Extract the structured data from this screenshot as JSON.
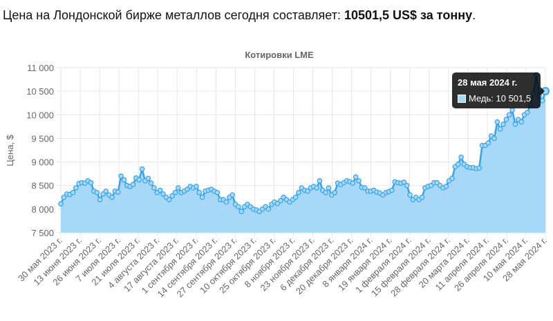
{
  "headline": {
    "prefix": "Цена на Лондонской бирже металлов сегодня составляет: ",
    "price": "10501,5 US$ за тонну",
    "suffix": "."
  },
  "tooltip": {
    "date": "28 мая 2024 г.",
    "label": "Медь: 10 501,5"
  },
  "colors": {
    "line": "#36a2eb",
    "fill": "#a7d8f8",
    "grid": "#e6e6e6"
  },
  "chart_data": {
    "type": "area",
    "title": "Котировки LME",
    "ylabel": "Цена, $",
    "xlabel": "",
    "ylim": [
      7500,
      11000
    ],
    "yticks": [
      7500,
      8000,
      8500,
      9000,
      9500,
      10000,
      10500,
      11000
    ],
    "ytick_labels": [
      "7 500",
      "8 000",
      "8 500",
      "9 000",
      "9 500",
      "10 000",
      "10 500",
      "11 000"
    ],
    "x_tick_labels": [
      "30 мая 2023 г.",
      "13 июня 2023 г.",
      "26 июня 2023 г.",
      "7 июля 2023 г.",
      "21 июля 2023 г.",
      "4 августа 2023 г.",
      "17 августа 2023 г.",
      "1 сентября 2023 г.",
      "14 сентября 2023 г.",
      "27 сентября 2023 г.",
      "10 октября 2023 г.",
      "25 октября 2023 г.",
      "8 ноября 2023 г.",
      "23 ноября 2023 г.",
      "6 декабря 2023 г.",
      "20 декабря 2023 г.",
      "8 января 2024 г.",
      "19 января 2024 г.",
      "1 февраля 2024 г.",
      "15 февраля 2024 г.",
      "28 февраля 2024 г.",
      "20 марта 2024 г.",
      "11 апреля 2024 г.",
      "26 апреля 2024 г.",
      "10 мая 2024 г.",
      "28 мая 2024 г."
    ],
    "grid": true,
    "legend": "none",
    "series": [
      {
        "values": [
          8110,
          8250,
          8320,
          8310,
          8350,
          8450,
          8540,
          8560,
          8550,
          8600,
          8560,
          8380,
          8350,
          8200,
          8320,
          8380,
          8300,
          8250,
          8380,
          8360,
          8700,
          8620,
          8500,
          8480,
          8520,
          8660,
          8620,
          8850,
          8600,
          8650,
          8550,
          8450,
          8350,
          8400,
          8320,
          8250,
          8200,
          8280,
          8350,
          8450,
          8350,
          8380,
          8420,
          8480,
          8450,
          8480,
          8350,
          8250,
          8380,
          8400,
          8420,
          8380,
          8350,
          8200,
          8200,
          8150,
          8250,
          8300,
          8100,
          8050,
          7950,
          8050,
          8100,
          8050,
          8000,
          7980,
          7950,
          8000,
          8050,
          8000,
          8100,
          8150,
          8120,
          8180,
          8250,
          8200,
          8150,
          8200,
          8250,
          8350,
          8450,
          8400,
          8380,
          8450,
          8480,
          8450,
          8600,
          8400,
          8350,
          8450,
          8300,
          8350,
          8550,
          8520,
          8560,
          8600,
          8580,
          8550,
          8680,
          8600,
          8460,
          8450,
          8380,
          8380,
          8400,
          8360,
          8340,
          8300,
          8350,
          8370,
          8400,
          8580,
          8560,
          8550,
          8570,
          8500,
          8300,
          8200,
          8250,
          8200,
          8250,
          8450,
          8480,
          8500,
          8560,
          8560,
          8500,
          8450,
          8480,
          8600,
          8650,
          8900,
          8950,
          9100,
          8950,
          8900,
          8880,
          8880,
          8860,
          8870,
          9350,
          9350,
          9400,
          9550,
          9500,
          9850,
          9700,
          9800,
          9900,
          10000,
          10100,
          9800,
          9900,
          9850,
          10000,
          10050,
          10200,
          10450,
          10850,
          10400,
          10300,
          10501.5
        ]
      }
    ]
  }
}
